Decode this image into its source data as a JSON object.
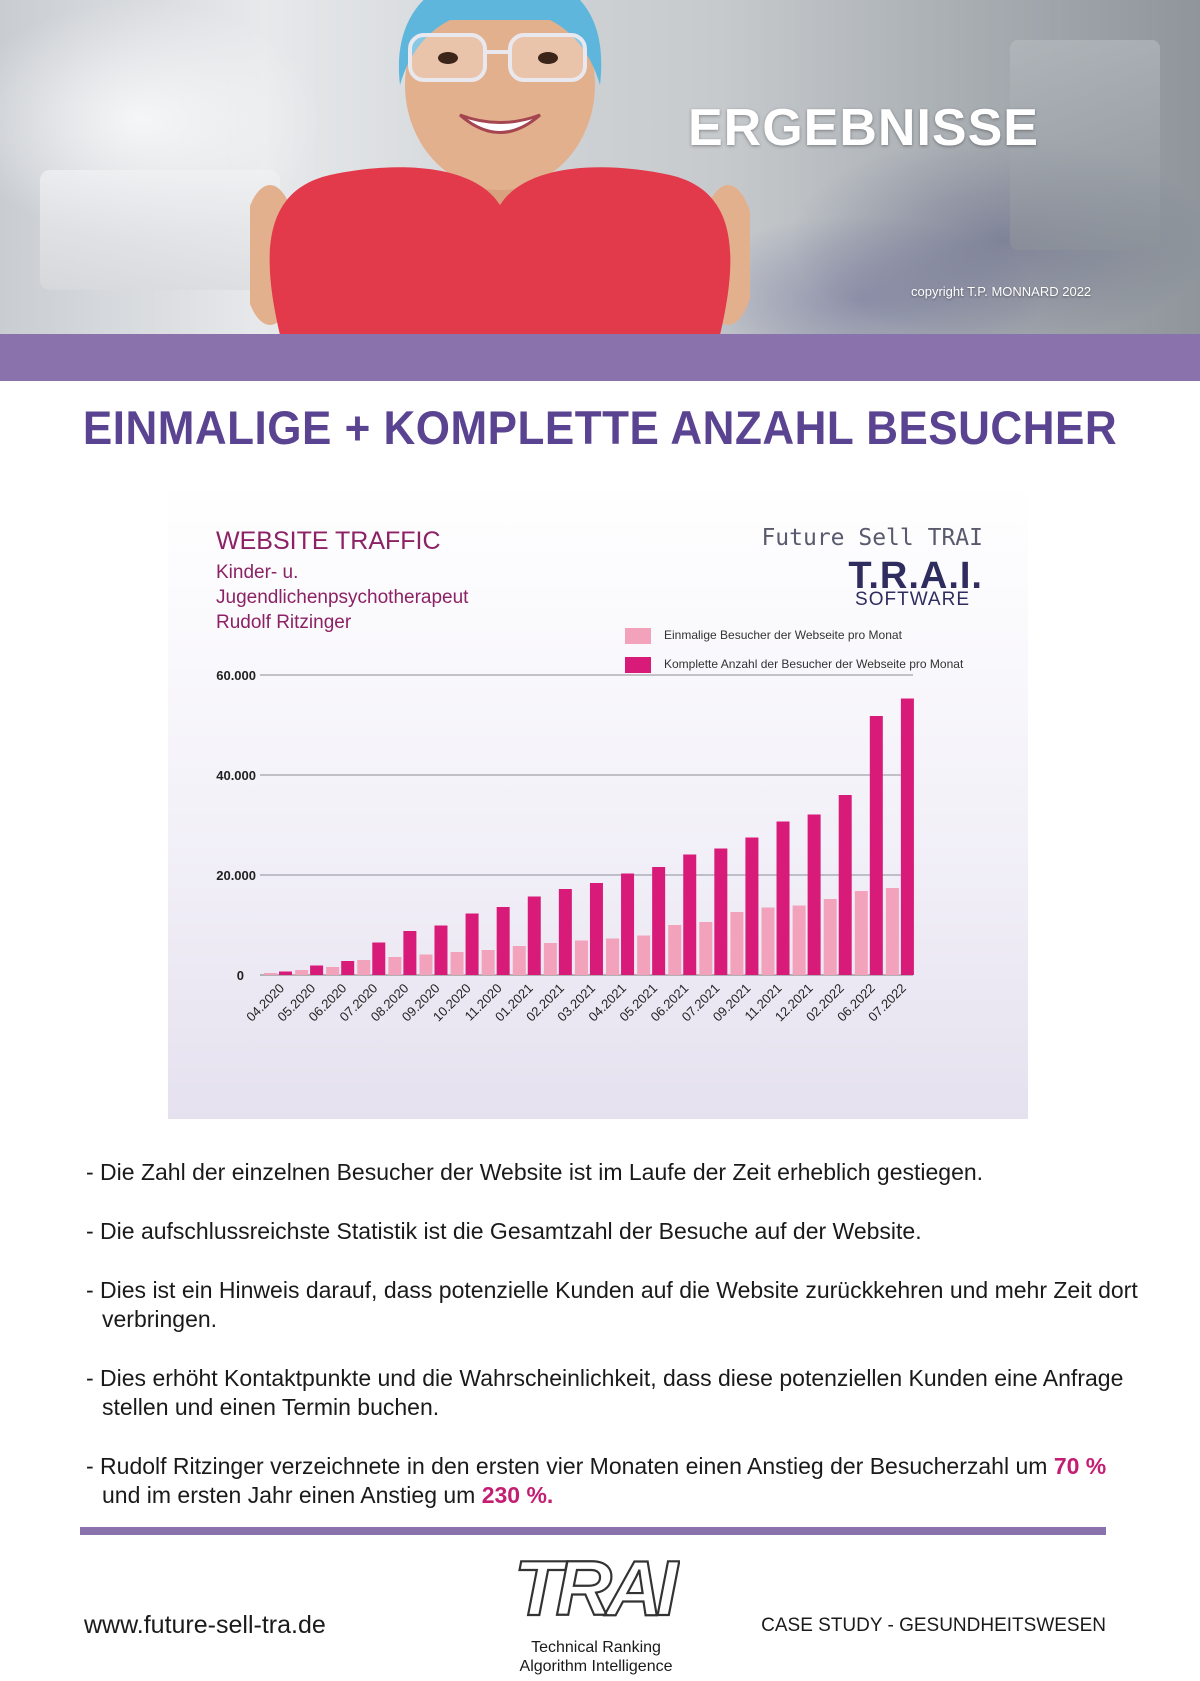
{
  "hero": {
    "title": "ERGEBNISSE",
    "copyright": "copyright T.P. MONNARD 2022"
  },
  "heading": "EINMALIGE + KOMPLETTE ANZAHL BESUCHER",
  "chart_header": {
    "title": "WEBSITE  TRAFFIC",
    "subtitle_lines": [
      "Kinder- u.",
      "Jugendlichenpsychotherapeut",
      "Rudolf Ritzinger"
    ],
    "brand_line": "Future Sell TRAI",
    "brand_logo": "T.R.A.I.",
    "brand_sub": "SOFTWARE"
  },
  "chart_data": {
    "type": "bar",
    "categories": [
      "04.2020",
      "05.2020",
      "06.2020",
      "07.2020",
      "08.2020",
      "09.2020",
      "10.2020",
      "11.2020",
      "01.2021",
      "02.2021",
      "03.2021",
      "04.2021",
      "05.2021",
      "06.2021",
      "07.2021",
      "09.2021",
      "11.2021",
      "12.2021",
      "02.2022",
      "06.2022",
      "07.2022"
    ],
    "series": [
      {
        "name": "Einmalige Besucher der Webseite pro Monat",
        "color": "#f2a3bb",
        "values": [
          400,
          1000,
          1600,
          3000,
          3600,
          4100,
          4600,
          5000,
          5800,
          6400,
          6900,
          7300,
          7900,
          10000,
          10600,
          12600,
          13500,
          13900,
          15200,
          16800,
          17400
        ]
      },
      {
        "name": "Komplette Anzahl der Besucher der Webseite pro Monat",
        "color": "#d81b78",
        "values": [
          700,
          1900,
          2800,
          6500,
          8800,
          9900,
          12300,
          13600,
          15700,
          17200,
          18400,
          20300,
          21600,
          24100,
          25300,
          27500,
          30700,
          32100,
          36000,
          51800,
          55300
        ]
      }
    ],
    "yticks": [
      "0",
      "20.000",
      "40.000",
      "60.000"
    ],
    "ytick_values": [
      0,
      20000,
      40000,
      60000
    ],
    "ylim": [
      0,
      60000
    ],
    "grid": true,
    "legend_position": "top-right"
  },
  "bullets": [
    {
      "text": "- Die Zahl der einzelnen Besucher der Website ist im Laufe der Zeit erheblich gestiegen."
    },
    {
      "text": "- Die aufschlussreichste Statistik ist die Gesamtzahl der Besuche auf der Website."
    },
    {
      "text": "- Dies ist ein Hinweis darauf, dass potenzielle Kunden auf die Website zurückkehren und mehr Zeit dort verbringen."
    },
    {
      "text": "- Dies erhöht Kontaktpunkte und die Wahrscheinlichkeit, dass diese potenziellen Kunden eine Anfrage stellen und einen Termin buchen."
    }
  ],
  "last_bullet": {
    "part1": "- Rudolf Ritzinger verzeichnete in den ersten vier Monaten einen Anstieg der Besucherzahl um ",
    "highlight1": "70 %",
    "part2": " und im ersten Jahr einen Anstieg um ",
    "highlight2": "230 %."
  },
  "footer": {
    "website": "www.future-sell-tra.de",
    "logo_text": "TRAI",
    "logo_sub1": "Technical Ranking",
    "logo_sub2": "Algorithm Intelligence",
    "case_study": "CASE STUDY - GESUNDHEITSWESEN"
  }
}
